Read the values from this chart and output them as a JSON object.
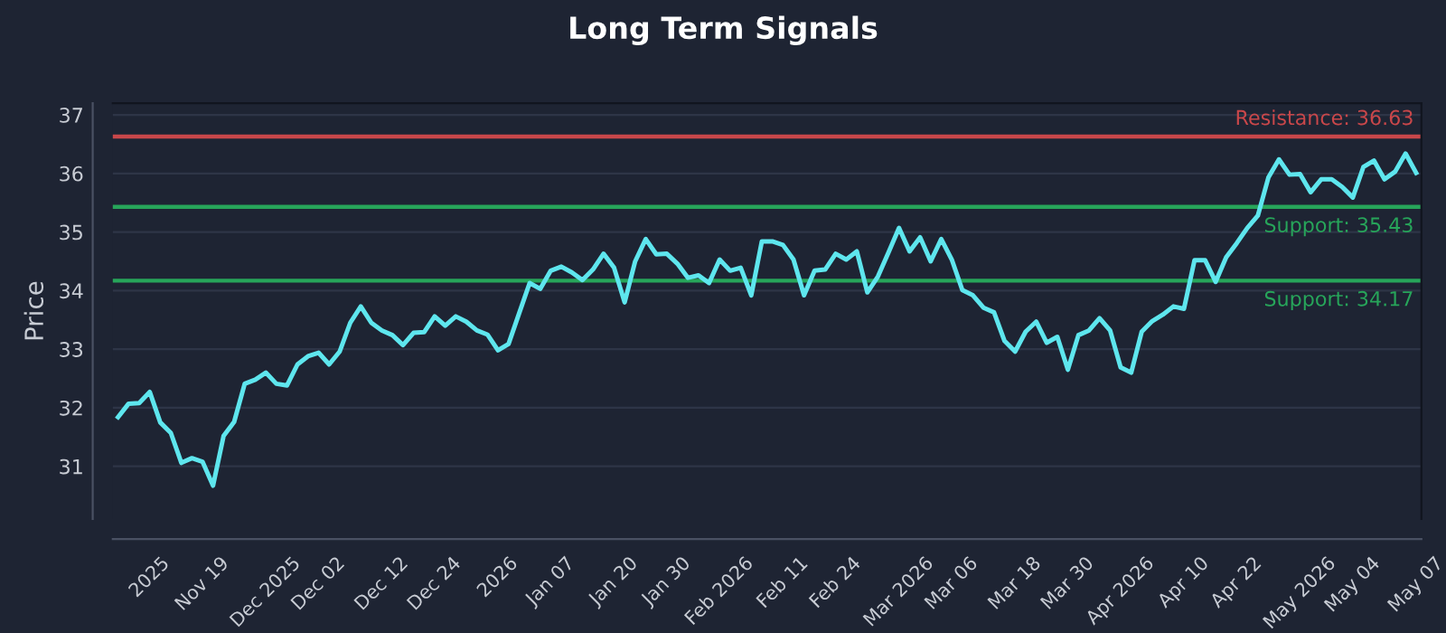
{
  "chart_data": {
    "type": "line",
    "title": "Long Term Signals",
    "ylabel": "Price",
    "categories": [
      null,
      null,
      null,
      "2025",
      null,
      null,
      null,
      null,
      "Nov 19",
      null,
      null,
      null,
      null,
      null,
      "Dec 2025",
      null,
      null,
      null,
      null,
      "Dec 02",
      null,
      null,
      null,
      null,
      null,
      "Dec 12",
      null,
      null,
      null,
      null,
      "Dec 24",
      null,
      null,
      null,
      null,
      null,
      "2026",
      null,
      null,
      null,
      null,
      "Jan 07",
      null,
      null,
      null,
      null,
      null,
      "Jan 20",
      null,
      null,
      null,
      null,
      "Jan 30",
      null,
      null,
      null,
      null,
      "Feb 2026",
      null,
      null,
      null,
      null,
      null,
      "Feb 11",
      null,
      null,
      null,
      null,
      "Feb 24",
      null,
      null,
      null,
      null,
      null,
      "Mar 2026",
      null,
      null,
      null,
      null,
      "Mar 06",
      null,
      null,
      null,
      null,
      null,
      "Mar 18",
      null,
      null,
      null,
      null,
      "Mar 30",
      null,
      null,
      null,
      null,
      "Apr 2026",
      null,
      null,
      null,
      null,
      null,
      "Apr 10",
      null,
      null,
      null,
      null,
      "Apr 22",
      null,
      null,
      null,
      null,
      null,
      "May 2026",
      null,
      null,
      null,
      null,
      "May 04",
      null,
      null,
      null,
      null,
      null,
      "May 07"
    ],
    "series": [
      {
        "color": "#5ee6ee",
        "values": [
          31.84,
          32.07,
          32.08,
          32.27,
          31.75,
          31.57,
          31.06,
          31.14,
          31.08,
          30.67,
          31.52,
          31.76,
          32.41,
          32.48,
          32.6,
          32.41,
          32.38,
          32.74,
          32.88,
          32.94,
          32.74,
          32.96,
          33.45,
          33.73,
          33.45,
          33.32,
          33.24,
          33.07,
          33.28,
          33.29,
          33.56,
          33.4,
          33.56,
          33.47,
          33.32,
          33.25,
          32.98,
          33.09,
          33.61,
          34.13,
          34.03,
          34.34,
          34.41,
          34.31,
          34.18,
          34.36,
          34.63,
          34.39,
          33.8,
          34.5,
          34.88,
          34.62,
          34.63,
          34.46,
          34.22,
          34.26,
          34.13,
          34.53,
          34.34,
          34.39,
          33.92,
          34.84,
          34.84,
          34.78,
          34.53,
          33.92,
          34.34,
          34.36,
          34.63,
          34.53,
          34.67,
          33.97,
          34.24,
          34.65,
          35.07,
          34.67,
          34.91,
          34.5,
          34.88,
          34.53,
          34.01,
          33.92,
          33.71,
          33.63,
          33.14,
          32.96,
          33.3,
          33.47,
          33.11,
          33.21,
          32.65,
          33.24,
          33.32,
          33.53,
          33.32,
          32.69,
          32.6,
          33.3,
          33.48,
          33.59,
          33.73,
          33.69,
          34.52,
          34.52,
          34.15,
          34.57,
          34.81,
          35.07,
          35.28,
          35.93,
          36.24,
          35.98,
          35.99,
          35.68,
          35.9,
          35.9,
          35.77,
          35.59,
          36.11,
          36.22,
          35.9,
          36.03,
          36.34,
          36.01
        ]
      }
    ],
    "ylim": [
      30.1,
      37.2
    ],
    "yticks": [
      31,
      32,
      33,
      34,
      35,
      36,
      37
    ],
    "ref_lines": [
      {
        "axis": "y",
        "value": 36.63,
        "label": "Resistance: 36.63",
        "color": "#c9474a"
      },
      {
        "axis": "y",
        "value": 35.43,
        "label": "Support: 35.43",
        "color": "#27a55a"
      },
      {
        "axis": "y",
        "value": 34.17,
        "label": "Support: 34.17",
        "color": "#27a55a"
      }
    ],
    "grid": "y",
    "marker": "none",
    "line_style": "solid"
  }
}
